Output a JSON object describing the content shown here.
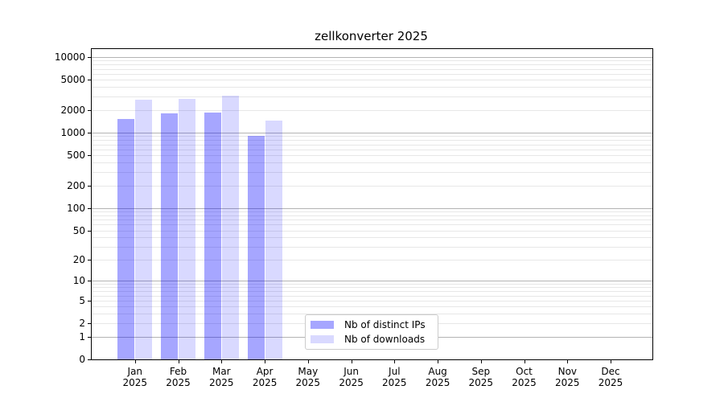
{
  "chart_data": {
    "type": "bar",
    "title": "zellkonverter 2025",
    "categories": [
      "Jan 2025",
      "Feb 2025",
      "Mar 2025",
      "Apr 2025",
      "May 2025",
      "Jun 2025",
      "Jul 2025",
      "Aug 2025",
      "Sep 2025",
      "Oct 2025",
      "Nov 2025",
      "Dec 2025"
    ],
    "series": [
      {
        "name": "Nb of distinct IPs",
        "color": "rgba(0,0,255,0.35)",
        "values": [
          1520,
          1800,
          1850,
          910,
          null,
          null,
          null,
          null,
          null,
          null,
          null,
          null
        ]
      },
      {
        "name": "Nb of downloads",
        "color": "rgba(0,0,255,0.15)",
        "values": [
          2700,
          2830,
          3100,
          1430,
          null,
          null,
          null,
          null,
          null,
          null,
          null,
          null
        ]
      }
    ],
    "yscale": "log1p",
    "yticks": [
      0,
      1,
      2,
      5,
      10,
      20,
      50,
      100,
      200,
      500,
      1000,
      2000,
      5000,
      10000
    ],
    "ylim": [
      0,
      13000
    ],
    "xlabel": "",
    "ylabel": "",
    "grid": "horizontal log minor and major gridlines",
    "legend_position": "inside plot, lower center-left",
    "colors": {
      "bar_distinct_ips": "#a6a6ff",
      "bar_downloads": "#d9d9ff",
      "major_grid": "#b3b3b3",
      "minor_grid": "#e7e7e7",
      "axis": "#000000",
      "background": "#ffffff"
    }
  }
}
